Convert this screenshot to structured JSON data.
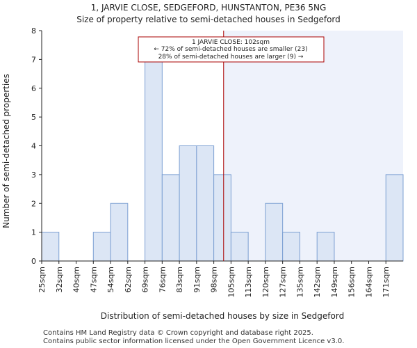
{
  "chart_data": {
    "type": "bar",
    "title_line1": "1, JARVIE CLOSE, SEDGEFORD, HUNSTANTON, PE36 5NG",
    "title_line2": "Size of property relative to semi-detached houses in Sedgeford",
    "xlabel": "Distribution of semi-detached houses by size in Sedgeford",
    "ylabel": "Number of semi-detached properties",
    "categories": [
      "25sqm",
      "32sqm",
      "40sqm",
      "47sqm",
      "54sqm",
      "62sqm",
      "69sqm",
      "76sqm",
      "83sqm",
      "91sqm",
      "98sqm",
      "105sqm",
      "113sqm",
      "120sqm",
      "127sqm",
      "135sqm",
      "142sqm",
      "149sqm",
      "156sqm",
      "164sqm",
      "171sqm"
    ],
    "values": [
      1,
      0,
      0,
      1,
      2,
      0,
      7,
      3,
      4,
      4,
      3,
      1,
      0,
      2,
      1,
      0,
      1,
      0,
      0,
      0,
      3
    ],
    "ylim": [
      0,
      8
    ],
    "yticks": [
      0,
      1,
      2,
      3,
      4,
      5,
      6,
      7,
      8
    ],
    "marker": {
      "value_sqm": 102,
      "label_line1": "1 JARVIE CLOSE: 102sqm",
      "label_line2": "← 72% of semi-detached houses are smaller (23)",
      "label_line3": "28% of semi-detached houses are larger (9) →"
    },
    "colors": {
      "bar_fill": "#dce6f5",
      "bar_stroke": "#7b9fd2",
      "highlight_bg": "#eef2fb",
      "marker_line": "#aa0000",
      "axis": "#222222"
    }
  },
  "footer": {
    "line1": "Contains HM Land Registry data © Crown copyright and database right 2025.",
    "line2": "Contains public sector information licensed under the Open Government Licence v3.0."
  }
}
